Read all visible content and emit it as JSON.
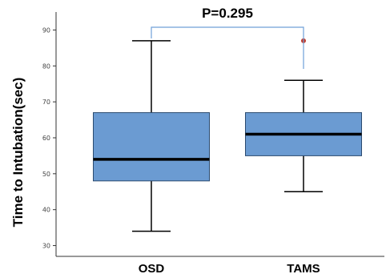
{
  "chart_data": {
    "type": "box",
    "ylabel": "Time to Intubation(sec)",
    "yticks": [
      30,
      40,
      50,
      60,
      70,
      80,
      90
    ],
    "ylim": [
      27,
      95
    ],
    "categories": [
      "OSD",
      "TAMS"
    ],
    "boxes": [
      {
        "category": "OSD",
        "whisker_low": 34,
        "q1": 48,
        "median": 54,
        "q3": 67,
        "whisker_high": 87,
        "outliers": []
      },
      {
        "category": "TAMS",
        "whisker_low": 45,
        "q1": 55,
        "median": 61,
        "q3": 67,
        "whisker_high": 76,
        "outliers": [
          87
        ]
      }
    ],
    "annotation": {
      "text": "P=0.295",
      "between": [
        "OSD",
        "TAMS"
      ]
    },
    "colors": {
      "box_fill": "#6b9bd2",
      "box_stroke": "#2b4a6f",
      "median": "#000000",
      "outlier": "#c0392b",
      "bracket": "#6fa0d8"
    }
  }
}
